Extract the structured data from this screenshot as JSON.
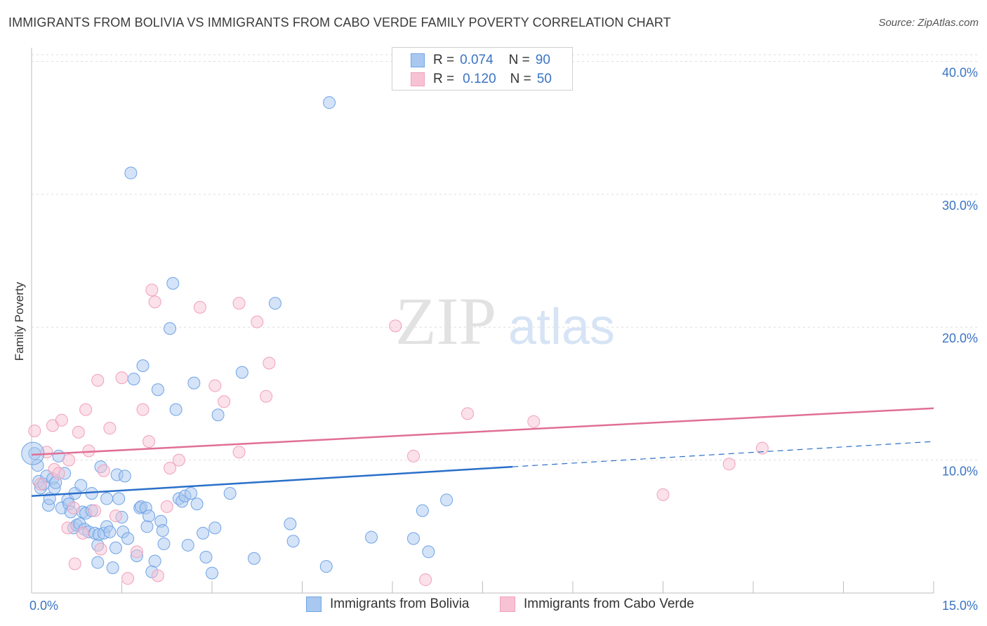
{
  "chart_data": {
    "type": "scatter",
    "title": "IMMIGRANTS FROM BOLIVIA VS IMMIGRANTS FROM CABO VERDE FAMILY POVERTY CORRELATION CHART",
    "source": "Source: ZipAtlas.com",
    "ylabel": "Family Poverty",
    "xlim": [
      0,
      15
    ],
    "ylim": [
      0,
      40.5
    ],
    "x_tick_labels": [
      "0.0%",
      "15.0%"
    ],
    "y_ticks": [
      10,
      20,
      30,
      40
    ],
    "y_tick_labels": [
      "10.0%",
      "20.0%",
      "30.0%",
      "40.0%"
    ],
    "watermark": {
      "part1": "ZIP",
      "part2": "atlas"
    },
    "legend": {
      "rows": [
        {
          "r_label": "R =",
          "r_value": "0.074",
          "n_label": "N =",
          "n_value": "90"
        },
        {
          "r_label": "R =",
          "r_value": "0.120",
          "n_label": "N =",
          "n_value": "50"
        }
      ]
    },
    "series": [
      {
        "name": "Immigrants from Bolivia",
        "color": "#6fa3e6",
        "fill": "#a9c8f0",
        "trend_color": "#2a6fc9",
        "trend": {
          "x0": 0,
          "y0": 7.3,
          "x1": 8.0,
          "y1": 9.5,
          "dash_x1": 15.0,
          "dash_y1": 11.4
        },
        "points": [
          [
            0.05,
            10.5
          ],
          [
            0.1,
            9.6
          ],
          [
            0.12,
            8.4
          ],
          [
            0.15,
            7.9
          ],
          [
            0.2,
            8.2
          ],
          [
            0.25,
            8.8
          ],
          [
            0.28,
            6.6
          ],
          [
            0.3,
            7.1
          ],
          [
            0.35,
            8.6
          ],
          [
            0.38,
            7.9
          ],
          [
            0.4,
            8.3
          ],
          [
            0.45,
            10.3
          ],
          [
            0.5,
            6.4
          ],
          [
            0.55,
            9.0
          ],
          [
            0.6,
            7.0
          ],
          [
            0.62,
            6.7
          ],
          [
            0.65,
            6.1
          ],
          [
            0.7,
            4.9
          ],
          [
            0.72,
            7.5
          ],
          [
            0.75,
            5.1
          ],
          [
            0.8,
            5.2
          ],
          [
            0.82,
            8.1
          ],
          [
            0.85,
            6.1
          ],
          [
            0.88,
            4.8
          ],
          [
            0.9,
            6.0
          ],
          [
            0.95,
            4.6
          ],
          [
            1.0,
            7.5
          ],
          [
            1.0,
            6.2
          ],
          [
            1.05,
            4.5
          ],
          [
            1.1,
            2.3
          ],
          [
            1.1,
            3.6
          ],
          [
            1.12,
            4.4
          ],
          [
            1.15,
            9.5
          ],
          [
            1.2,
            4.5
          ],
          [
            1.25,
            5.0
          ],
          [
            1.25,
            7.1
          ],
          [
            1.3,
            4.6
          ],
          [
            1.35,
            1.9
          ],
          [
            1.4,
            3.4
          ],
          [
            1.42,
            8.9
          ],
          [
            1.45,
            7.1
          ],
          [
            1.5,
            5.7
          ],
          [
            1.52,
            4.6
          ],
          [
            1.55,
            8.8
          ],
          [
            1.6,
            4.1
          ],
          [
            1.65,
            31.6
          ],
          [
            1.7,
            16.1
          ],
          [
            1.75,
            2.8
          ],
          [
            1.8,
            6.4
          ],
          [
            1.82,
            6.5
          ],
          [
            1.85,
            17.1
          ],
          [
            1.9,
            6.4
          ],
          [
            1.92,
            5.0
          ],
          [
            1.95,
            5.8
          ],
          [
            2.0,
            1.6
          ],
          [
            2.05,
            2.4
          ],
          [
            2.1,
            15.3
          ],
          [
            2.15,
            5.4
          ],
          [
            2.18,
            4.7
          ],
          [
            2.2,
            3.7
          ],
          [
            2.3,
            19.9
          ],
          [
            2.35,
            23.3
          ],
          [
            2.4,
            13.8
          ],
          [
            2.45,
            7.1
          ],
          [
            2.5,
            6.9
          ],
          [
            2.55,
            7.3
          ],
          [
            2.6,
            3.6
          ],
          [
            2.65,
            7.5
          ],
          [
            2.7,
            15.8
          ],
          [
            2.75,
            6.7
          ],
          [
            2.85,
            4.5
          ],
          [
            2.9,
            2.7
          ],
          [
            3.0,
            1.5
          ],
          [
            3.05,
            4.9
          ],
          [
            3.1,
            13.4
          ],
          [
            3.3,
            7.5
          ],
          [
            3.5,
            16.6
          ],
          [
            3.7,
            2.6
          ],
          [
            4.05,
            21.8
          ],
          [
            4.3,
            5.2
          ],
          [
            4.35,
            3.9
          ],
          [
            4.9,
            2.0
          ],
          [
            4.95,
            36.9
          ],
          [
            5.65,
            4.2
          ],
          [
            6.35,
            4.1
          ],
          [
            6.5,
            6.2
          ],
          [
            6.6,
            3.1
          ],
          [
            6.9,
            7.0
          ]
        ]
      },
      {
        "name": "Immigrants from Cabo Verde",
        "color": "#f0a0bd",
        "fill": "#f7c3d4",
        "trend_color": "#e06f97",
        "trend": {
          "x0": 0,
          "y0": 10.4,
          "x1": 15.0,
          "y1": 13.9
        },
        "points": [
          [
            0.05,
            12.2
          ],
          [
            0.15,
            8.2
          ],
          [
            0.25,
            10.6
          ],
          [
            0.35,
            12.6
          ],
          [
            0.38,
            9.3
          ],
          [
            0.45,
            9.0
          ],
          [
            0.5,
            13.0
          ],
          [
            0.6,
            4.9
          ],
          [
            0.62,
            10.0
          ],
          [
            0.7,
            6.4
          ],
          [
            0.72,
            2.2
          ],
          [
            0.78,
            12.1
          ],
          [
            0.85,
            4.5
          ],
          [
            0.9,
            13.8
          ],
          [
            0.95,
            10.7
          ],
          [
            1.05,
            6.2
          ],
          [
            1.1,
            16.0
          ],
          [
            1.15,
            3.3
          ],
          [
            1.2,
            9.2
          ],
          [
            1.3,
            12.4
          ],
          [
            1.4,
            5.8
          ],
          [
            1.5,
            16.2
          ],
          [
            1.6,
            1.1
          ],
          [
            1.75,
            3.1
          ],
          [
            1.85,
            13.8
          ],
          [
            1.95,
            11.4
          ],
          [
            2.0,
            22.8
          ],
          [
            2.05,
            21.9
          ],
          [
            2.1,
            1.3
          ],
          [
            2.25,
            6.5
          ],
          [
            2.3,
            9.4
          ],
          [
            2.45,
            10.0
          ],
          [
            2.8,
            21.5
          ],
          [
            3.05,
            15.6
          ],
          [
            3.2,
            14.4
          ],
          [
            3.45,
            10.6
          ],
          [
            3.45,
            21.8
          ],
          [
            3.75,
            20.4
          ],
          [
            3.9,
            14.8
          ],
          [
            3.95,
            17.3
          ],
          [
            6.05,
            20.1
          ],
          [
            6.35,
            10.3
          ],
          [
            6.55,
            1.0
          ],
          [
            7.25,
            13.5
          ],
          [
            8.35,
            12.9
          ],
          [
            10.5,
            7.4
          ],
          [
            11.6,
            9.7
          ],
          [
            12.15,
            10.9
          ]
        ]
      }
    ]
  }
}
